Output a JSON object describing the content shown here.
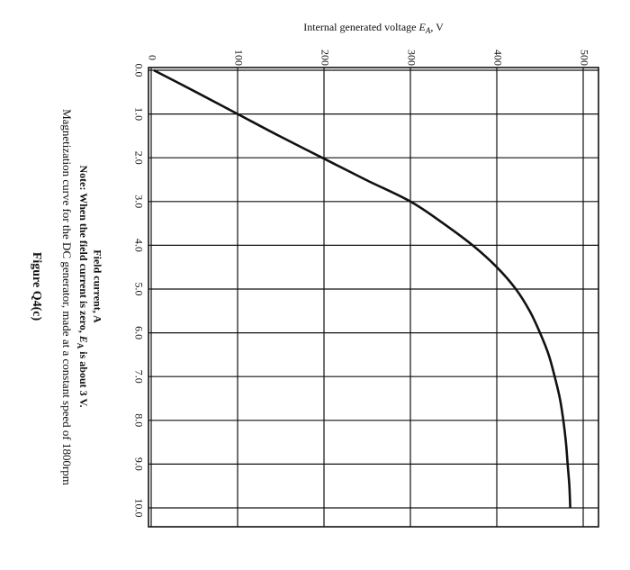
{
  "chart_data": {
    "type": "line",
    "x_axis_title": "Field current, A",
    "y_axis_title_main": "Internal generated voltage ",
    "y_axis_title_var": "E",
    "y_axis_title_sub": "A",
    "y_axis_title_unit": ", V",
    "x_ticks": [
      "0.0",
      "1.0",
      "2.0",
      "3.0",
      "4.0",
      "5.0",
      "6.0",
      "7.0",
      "8.0",
      "9.0",
      "10.0"
    ],
    "y_ticks": [
      "0",
      "100",
      "200",
      "300",
      "400",
      "500"
    ],
    "xlim": [
      0,
      10.5
    ],
    "ylim": [
      0,
      520
    ],
    "grid": true,
    "series": [
      {
        "x": [
          0,
          0.5,
          1.0,
          1.5,
          2.0,
          2.5,
          3.0,
          3.5,
          4.0,
          4.5,
          5.0,
          5.5,
          6.0,
          6.5,
          7.0,
          7.5,
          8.0,
          8.5,
          9.0,
          9.5,
          10.0
        ],
        "y": [
          3,
          52,
          100,
          148,
          198,
          248,
          300,
          338,
          372,
          400,
          422,
          438,
          450,
          460,
          467,
          473,
          477,
          480,
          482,
          484,
          485
        ]
      }
    ]
  },
  "note": {
    "prefix": "Note: When the field current is zero, ",
    "var": "E",
    "sub": "A",
    "suffix": " is about 3 V."
  },
  "caption": "Magnetization curve for the DC generator, made at a constant speed of 1800rpm",
  "figure_label": "Figure Q4(c)"
}
